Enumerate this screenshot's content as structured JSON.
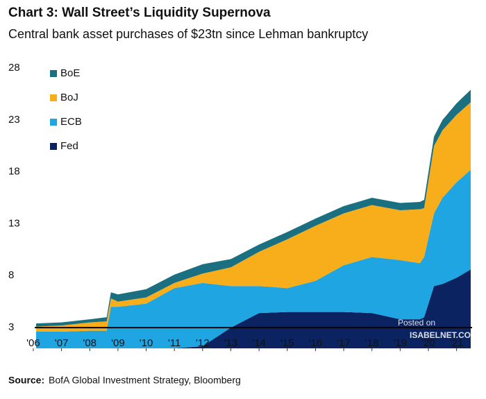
{
  "chart_data": {
    "type": "stacked_area",
    "title": "Chart 3: Wall Street’s Liquidity Supernova",
    "subtitle": "Central bank asset purchases of $23tn since Lehman bankruptcy",
    "source_label": "Source:",
    "source": "BofA Global Investment Strategy, Bloomberg",
    "watermark": [
      "Posted on",
      "ISABELNET.COM"
    ],
    "x": [
      2006.1,
      2007,
      2008,
      2008.6,
      2008.75,
      2009,
      2010,
      2011,
      2012,
      2013,
      2014,
      2015,
      2016,
      2017,
      2018,
      2019,
      2019.7,
      2019.85,
      2020.2,
      2020.5,
      2021,
      2021.5
    ],
    "series": [
      {
        "name": "Fed",
        "color": "#0b2461",
        "values": [
          0,
          0,
          0,
          0,
          0,
          0,
          0,
          0,
          0.2,
          2.0,
          3.4,
          3.5,
          3.5,
          3.5,
          3.4,
          2.8,
          2.8,
          3.0,
          6.0,
          6.2,
          6.8,
          7.6
        ]
      },
      {
        "name": "ECB",
        "color": "#1fa6e2",
        "values": [
          1.6,
          1.6,
          1.7,
          1.7,
          4.0,
          4.0,
          4.3,
          5.8,
          6.1,
          4.0,
          2.6,
          2.3,
          3.0,
          4.5,
          5.4,
          5.7,
          5.4,
          5.8,
          7.0,
          8.3,
          9.2,
          9.6
        ]
      },
      {
        "name": "BoJ",
        "color": "#f7ae1a",
        "values": [
          0.5,
          0.6,
          0.8,
          0.9,
          0.8,
          0.5,
          0.6,
          0.5,
          0.9,
          1.8,
          3.3,
          4.7,
          5.3,
          5.0,
          5.0,
          4.8,
          5.2,
          4.7,
          6.5,
          6.5,
          6.5,
          6.5
        ]
      },
      {
        "name": "BoE",
        "color": "#1a7080",
        "values": [
          0.3,
          0.3,
          0.3,
          0.4,
          0.6,
          0.7,
          0.8,
          0.8,
          0.9,
          0.8,
          0.7,
          0.7,
          0.7,
          0.7,
          0.7,
          0.7,
          0.7,
          0.8,
          0.9,
          1.0,
          1.1,
          1.2
        ]
      }
    ],
    "ylim": [
      1,
      28
    ],
    "yticks": [
      3,
      8,
      13,
      18,
      23,
      28
    ],
    "xlim": [
      2006.05,
      2021.55
    ],
    "xticks": [
      {
        "value": 2006,
        "label": "'06"
      },
      {
        "value": 2007,
        "label": "'07"
      },
      {
        "value": 2008,
        "label": "'08"
      },
      {
        "value": 2009,
        "label": "'09"
      },
      {
        "value": 2010,
        "label": "'10"
      },
      {
        "value": 2011,
        "label": "'11"
      },
      {
        "value": 2012,
        "label": "'12"
      },
      {
        "value": 2013,
        "label": "'13"
      },
      {
        "value": 2014,
        "label": "'14"
      },
      {
        "value": 2015,
        "label": "'15"
      },
      {
        "value": 2016,
        "label": "'16"
      },
      {
        "value": 2017,
        "label": "'17"
      },
      {
        "value": 2018,
        "label": "'18"
      },
      {
        "value": 2019,
        "label": "'19"
      },
      {
        "value": 2020,
        "label": "'20"
      },
      {
        "value": 2021,
        "label": "'21"
      }
    ],
    "legend": "top-left",
    "grid": false
  }
}
